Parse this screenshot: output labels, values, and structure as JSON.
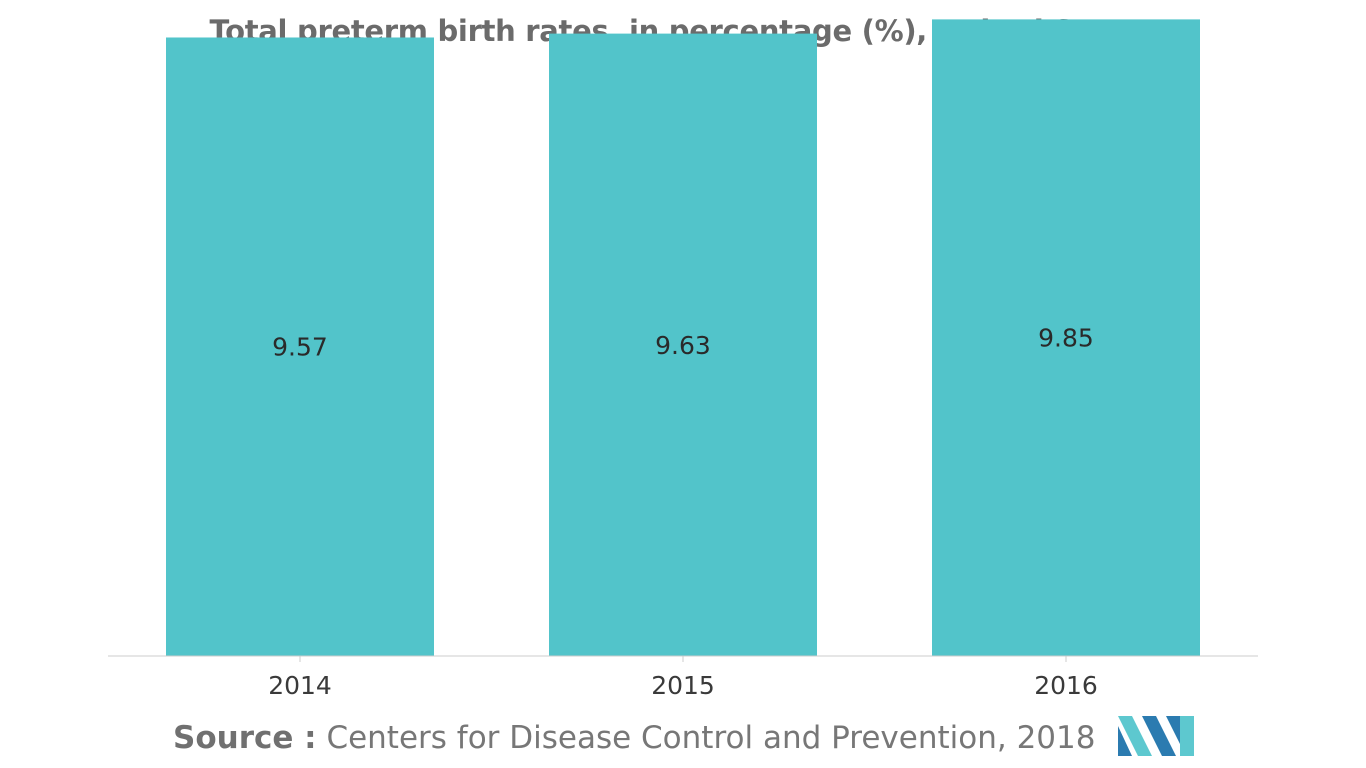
{
  "chart_data": {
    "type": "bar",
    "title": "Total preterm birth rates, in percentage (%), United States",
    "categories": [
      "2014",
      "2015",
      "2016"
    ],
    "values": [
      9.57,
      9.63,
      9.85
    ],
    "data_labels": [
      "9.57",
      "9.63",
      "9.85"
    ],
    "xlabel": "",
    "ylabel": "",
    "ylim": [
      0,
      10.15
    ],
    "grid": false,
    "legend": "none",
    "bar_color": "#52c4ca"
  },
  "source": {
    "label": "Source :",
    "text": "Centers for Disease Control and Prevention, 2018"
  },
  "colors": {
    "logo_dark": "#2b7bb0",
    "logo_light": "#5dc8cf",
    "axis": "#cccccc"
  },
  "logo": {
    "icon": "mordor-intelligence-logo-icon"
  }
}
